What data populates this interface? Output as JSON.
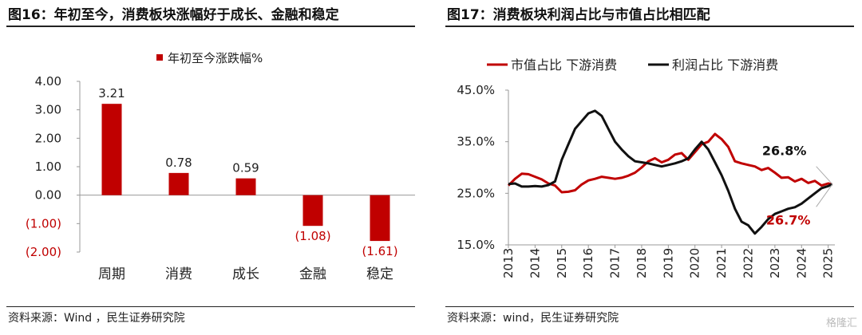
{
  "left": {
    "title": "图16：年初至今，消费板块涨幅好于成长、金融和稳定",
    "source": "资料来源：Wind ，民生证券研究院"
  },
  "right": {
    "title": "图17：消费板块利润占比与市值占比相匹配",
    "source": "资料来源：wind，民生证券研究院"
  },
  "watermark": "格隆汇",
  "chart_data": [
    {
      "type": "bar",
      "categories": [
        "周期",
        "消费",
        "成长",
        "金融",
        "稳定"
      ],
      "series": [
        {
          "name": "年初至今涨跌幅%",
          "values": [
            3.21,
            0.78,
            0.59,
            -1.08,
            -1.61
          ]
        }
      ],
      "data_labels": [
        "3.21",
        "0.78",
        "0.59",
        "(1.08)",
        "(1.61)"
      ],
      "ylim": [
        -2.0,
        4.0
      ],
      "yticks": [
        4.0,
        3.0,
        2.0,
        1.0,
        0.0,
        -1.0,
        -2.0
      ],
      "ytick_labels": [
        "4.00",
        "3.00",
        "2.00",
        "1.00",
        "0.00",
        "(1.00)",
        "(2.00)"
      ],
      "legend": "top",
      "colors": {
        "bar": "#c00000",
        "negative_label": "#c00000"
      }
    },
    {
      "type": "line",
      "x_start": 2013.0,
      "x_end": 2025.25,
      "xticks": [
        "2013",
        "2014",
        "2015",
        "2016",
        "2017",
        "2018",
        "2019",
        "2020",
        "2021",
        "2022",
        "2023",
        "2024",
        "2025"
      ],
      "ylim": [
        15,
        45
      ],
      "yticks": [
        45,
        35,
        25,
        15
      ],
      "ytick_labels": [
        "45.0%",
        "35.0%",
        "25.0%",
        "15.0%"
      ],
      "legend": "top",
      "series": [
        {
          "name": "市值占比 下游消费",
          "color": "#c00000",
          "end_label": "26.7%",
          "points": [
            [
              2013.0,
              26.5
            ],
            [
              2013.25,
              27.8
            ],
            [
              2013.5,
              28.8
            ],
            [
              2013.75,
              28.7
            ],
            [
              2014.0,
              28.2
            ],
            [
              2014.25,
              27.7
            ],
            [
              2014.5,
              26.9
            ],
            [
              2014.75,
              26.5
            ],
            [
              2015.0,
              25.2
            ],
            [
              2015.25,
              25.3
            ],
            [
              2015.5,
              25.6
            ],
            [
              2015.75,
              26.7
            ],
            [
              2016.0,
              27.5
            ],
            [
              2016.25,
              27.8
            ],
            [
              2016.5,
              28.2
            ],
            [
              2016.75,
              28.0
            ],
            [
              2017.0,
              27.8
            ],
            [
              2017.25,
              28.0
            ],
            [
              2017.5,
              28.4
            ],
            [
              2017.75,
              29.0
            ],
            [
              2018.0,
              30.0
            ],
            [
              2018.25,
              31.2
            ],
            [
              2018.5,
              31.8
            ],
            [
              2018.75,
              31.0
            ],
            [
              2019.0,
              31.5
            ],
            [
              2019.25,
              32.5
            ],
            [
              2019.5,
              32.8
            ],
            [
              2019.75,
              31.5
            ],
            [
              2020.0,
              33.0
            ],
            [
              2020.25,
              34.5
            ],
            [
              2020.5,
              35.0
            ],
            [
              2020.75,
              36.5
            ],
            [
              2021.0,
              35.5
            ],
            [
              2021.25,
              34.0
            ],
            [
              2021.5,
              31.2
            ],
            [
              2021.75,
              30.8
            ],
            [
              2022.0,
              30.5
            ],
            [
              2022.25,
              30.2
            ],
            [
              2022.5,
              29.5
            ],
            [
              2022.75,
              29.9
            ],
            [
              2023.0,
              29.0
            ],
            [
              2023.25,
              28.0
            ],
            [
              2023.5,
              28.1
            ],
            [
              2023.75,
              27.3
            ],
            [
              2024.0,
              27.8
            ],
            [
              2024.25,
              27.0
            ],
            [
              2024.5,
              27.4
            ],
            [
              2024.75,
              26.5
            ],
            [
              2025.0,
              26.9
            ],
            [
              2025.15,
              26.7
            ]
          ]
        },
        {
          "name": "利润占比 下游消费",
          "color": "#111111",
          "end_label": "26.8%",
          "points": [
            [
              2013.0,
              26.8
            ],
            [
              2013.25,
              26.9
            ],
            [
              2013.5,
              26.3
            ],
            [
              2013.75,
              26.3
            ],
            [
              2014.0,
              26.4
            ],
            [
              2014.25,
              26.3
            ],
            [
              2014.5,
              26.6
            ],
            [
              2014.75,
              27.3
            ],
            [
              2015.0,
              31.5
            ],
            [
              2015.25,
              34.5
            ],
            [
              2015.5,
              37.5
            ],
            [
              2015.75,
              39.0
            ],
            [
              2016.0,
              40.5
            ],
            [
              2016.25,
              41.0
            ],
            [
              2016.5,
              40.0
            ],
            [
              2016.75,
              37.5
            ],
            [
              2017.0,
              35.0
            ],
            [
              2017.25,
              33.5
            ],
            [
              2017.5,
              32.2
            ],
            [
              2017.75,
              31.2
            ],
            [
              2018.0,
              31.0
            ],
            [
              2018.25,
              30.8
            ],
            [
              2018.5,
              30.5
            ],
            [
              2018.75,
              30.2
            ],
            [
              2019.0,
              30.5
            ],
            [
              2019.25,
              30.8
            ],
            [
              2019.5,
              31.2
            ],
            [
              2019.75,
              31.8
            ],
            [
              2020.0,
              33.5
            ],
            [
              2020.25,
              35.0
            ],
            [
              2020.5,
              33.5
            ],
            [
              2020.75,
              31.0
            ],
            [
              2021.0,
              28.5
            ],
            [
              2021.25,
              25.5
            ],
            [
              2021.5,
              22.0
            ],
            [
              2021.75,
              19.5
            ],
            [
              2022.0,
              18.8
            ],
            [
              2022.25,
              17.2
            ],
            [
              2022.5,
              18.5
            ],
            [
              2022.75,
              20.0
            ],
            [
              2023.0,
              21.0
            ],
            [
              2023.25,
              21.5
            ],
            [
              2023.5,
              22.0
            ],
            [
              2023.75,
              22.3
            ],
            [
              2024.0,
              23.0
            ],
            [
              2024.25,
              24.0
            ],
            [
              2024.5,
              25.0
            ],
            [
              2024.75,
              26.0
            ],
            [
              2025.0,
              26.4
            ],
            [
              2025.15,
              26.8
            ]
          ]
        }
      ]
    }
  ]
}
